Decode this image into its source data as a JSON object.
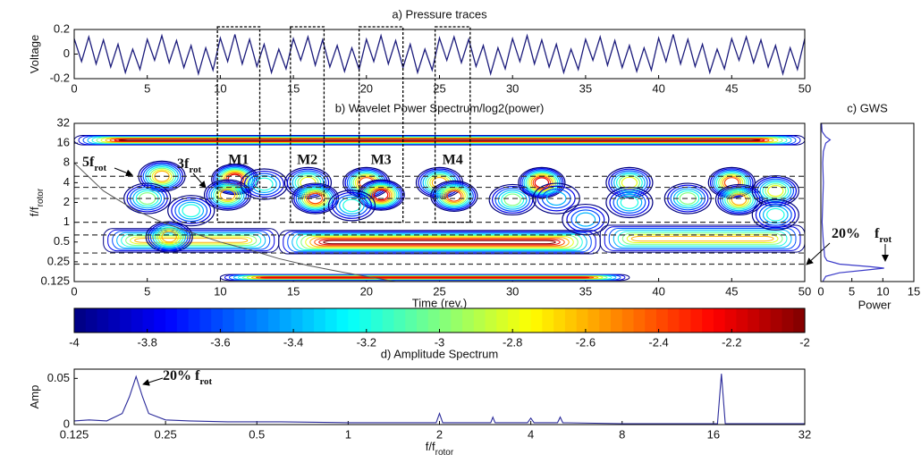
{
  "chart_data": [
    {
      "type": "line",
      "title": "a) Pressure traces",
      "ylabel": {
        "text": "Voltage"
      },
      "xlim": [
        0,
        50
      ],
      "xticks": [
        0,
        5,
        10,
        15,
        20,
        25,
        30,
        35,
        40,
        45,
        50
      ],
      "ylim": [
        -0.2,
        0.2
      ],
      "yticks": [
        -0.2,
        0,
        0.2
      ],
      "color": "#1c1c7c",
      "x": [
        0,
        0.5,
        1,
        1.5,
        2,
        2.5,
        3,
        3.5,
        4,
        4.5,
        5,
        5.5,
        6,
        6.5,
        7,
        7.5,
        8,
        8.5,
        9,
        9.5,
        10,
        10.5,
        11,
        11.5,
        12,
        12.5,
        13,
        13.5,
        14,
        14.5,
        15,
        15.5,
        16,
        16.5,
        17,
        17.5,
        18,
        18.5,
        19,
        19.5,
        20,
        20.5,
        21,
        21.5,
        22,
        22.5,
        23,
        23.5,
        24,
        24.5,
        25,
        25.5,
        26,
        26.5,
        27,
        27.5,
        28,
        28.5,
        29,
        29.5,
        30,
        30.5,
        31,
        31.5,
        32,
        32.5,
        33,
        33.5,
        34,
        34.5,
        35,
        35.5,
        36,
        36.5,
        37,
        37.5,
        38,
        38.5,
        39,
        39.5,
        40,
        40.5,
        41,
        41.5,
        42,
        42.5,
        43,
        43.5,
        44,
        44.5,
        45,
        45.5,
        46,
        46.5,
        47,
        47.5,
        48,
        48.5,
        49,
        49.5,
        50
      ],
      "values": [
        0.125,
        -0.06,
        0.14,
        -0.08,
        0.115,
        -0.105,
        0.08,
        -0.15,
        0.04,
        -0.125,
        0.12,
        -0.05,
        0.15,
        -0.07,
        0.11,
        -0.11,
        0.07,
        -0.16,
        0.05,
        -0.13,
        0.13,
        -0.06,
        0.16,
        -0.08,
        0.12,
        -0.1,
        0.08,
        -0.15,
        0.04,
        -0.12,
        0.125,
        -0.05,
        0.14,
        -0.09,
        0.115,
        -0.105,
        0.07,
        -0.14,
        0.05,
        -0.125,
        0.12,
        -0.06,
        0.15,
        -0.08,
        0.11,
        -0.11,
        0.08,
        -0.15,
        0.04,
        -0.13,
        0.13,
        -0.05,
        0.14,
        -0.07,
        0.12,
        -0.1,
        0.07,
        -0.16,
        0.05,
        -0.12,
        0.125,
        -0.06,
        0.15,
        -0.08,
        0.115,
        -0.105,
        0.08,
        -0.15,
        0.04,
        -0.125,
        0.12,
        -0.05,
        0.14,
        -0.09,
        0.11,
        -0.11,
        0.07,
        -0.14,
        0.05,
        -0.13,
        0.13,
        -0.06,
        0.16,
        -0.08,
        0.12,
        -0.1,
        0.08,
        -0.15,
        0.04,
        -0.12,
        0.125,
        -0.05,
        0.14,
        -0.07,
        0.115,
        -0.105,
        0.07,
        -0.16,
        0.05,
        -0.125,
        0.125
      ]
    },
    {
      "type": "contour",
      "title": "b) Wavelet Power Spectrum/log2(power)",
      "xlabel": "Time (rev.)",
      "ylabel": {
        "text": "f/f",
        "sub": "rotor"
      },
      "yscale": "log2",
      "xlim": [
        0,
        50
      ],
      "xticks": [
        0,
        5,
        10,
        15,
        20,
        25,
        30,
        35,
        40,
        45,
        50
      ],
      "ylim": [
        0.125,
        32
      ],
      "yticks": [
        0.125,
        0.25,
        0.5,
        1,
        2,
        4,
        8,
        16,
        32
      ],
      "clim": [
        -4,
        -2
      ],
      "blobs": {
        "x": [
          6,
          5,
          6.5,
          8,
          11,
          10.5,
          13,
          16,
          16.5,
          20,
          21,
          19,
          25,
          26,
          30,
          32,
          33,
          38,
          38,
          42,
          45,
          45.5,
          48,
          48,
          35
        ],
        "f": [
          5,
          2.3,
          0.6,
          1.5,
          4.5,
          2.6,
          3.8,
          4,
          2.3,
          4,
          2.6,
          1.8,
          4,
          2.5,
          2.2,
          4,
          2.3,
          4,
          2,
          2.3,
          4,
          2.2,
          3,
          1.3,
          1.1
        ],
        "values": [
          -2.6,
          -3,
          -2.6,
          -3.2,
          -2.2,
          -2.6,
          -3.2,
          -2.8,
          -2.4,
          -2.4,
          -2.2,
          -3.2,
          -2.6,
          -2.4,
          -3,
          -2.2,
          -3.4,
          -2.8,
          -3.2,
          -3,
          -2.4,
          -2.6,
          -2.8,
          -3.2,
          -3.4
        ]
      },
      "bands": [
        {
          "x": [
            0,
            50
          ],
          "f": [
            15,
            21
          ],
          "value": -2
        },
        {
          "x": [
            2,
            14
          ],
          "f": [
            0.35,
            0.8
          ],
          "value": -2.6
        },
        {
          "x": [
            14,
            36
          ],
          "f": [
            0.33,
            0.75
          ],
          "value": -2
        },
        {
          "x": [
            36,
            50
          ],
          "f": [
            0.35,
            0.9
          ],
          "value": -2.6
        },
        {
          "x": [
            10,
            38
          ],
          "f": [
            0.13,
            0.16
          ],
          "value": -2.2
        }
      ],
      "ref_lines": [
        5,
        3.4,
        2.3,
        1,
        0.64,
        0.34,
        0.23
      ],
      "coi": {
        "x": [
          0,
          2,
          4,
          6,
          8,
          10,
          12,
          14,
          16,
          18,
          20,
          22
        ],
        "values": [
          8,
          3,
          1.6,
          1,
          0.7,
          0.5,
          0.38,
          0.28,
          0.22,
          0.18,
          0.15,
          0.125
        ]
      },
      "regions": [
        {
          "label": "M1",
          "x": [
            9.8,
            12.7
          ],
          "f_min": 1
        },
        {
          "label": "M2",
          "x": [
            14.8,
            17.1
          ],
          "f_min": 1
        },
        {
          "label": "M3",
          "x": [
            19.5,
            22.5
          ],
          "f_min": 1
        },
        {
          "label": "M4",
          "x": [
            24.7,
            27.1
          ],
          "f_min": 1
        }
      ],
      "annotations": [
        {
          "text": "5f",
          "sub": "rot"
        },
        {
          "text": "3f",
          "sub": "rot"
        },
        {
          "text": "20%"
        }
      ]
    },
    {
      "type": "line",
      "title": "c) GWS",
      "xlabel": "Power",
      "yscale": "log2",
      "orientation": "horizontal",
      "xlim": [
        0,
        15
      ],
      "xticks": [
        0,
        5,
        10,
        15
      ],
      "ylim": [
        0.125,
        32
      ],
      "color": "#3a3ac8",
      "f": [
        0.125,
        0.15,
        0.17,
        0.19,
        0.2,
        0.21,
        0.23,
        0.26,
        0.3,
        0.4,
        0.5,
        0.7,
        1,
        2,
        4,
        8,
        12,
        16,
        18,
        20,
        24,
        32
      ],
      "values": [
        0.3,
        0.8,
        3,
        8,
        10.2,
        8,
        3,
        1,
        0.6,
        0.5,
        0.4,
        0.3,
        0.2,
        0.3,
        0.4,
        0.3,
        0.4,
        0.8,
        1.5,
        0.8,
        0.2,
        0.1
      ],
      "annotations": [
        {
          "text": "f",
          "sub": "rot"
        }
      ]
    },
    {
      "type": "colorbar",
      "clim": [
        -4,
        -2
      ],
      "colormap": "jet",
      "ticks": [
        -4,
        -3.8,
        -3.6,
        -3.4,
        -3.2,
        -3,
        -2.8,
        -2.6,
        -2.4,
        -2.2,
        -2
      ]
    },
    {
      "type": "line",
      "title": "d) Amplitude Spectrum",
      "xlabel": {
        "text": "f/f",
        "sub": "rotor"
      },
      "ylabel": {
        "text": "Amp"
      },
      "xscale": "log2",
      "xlim": [
        0.125,
        32
      ],
      "xticks": [
        0.125,
        0.25,
        0.5,
        1,
        2,
        4,
        8,
        16,
        32
      ],
      "ylim": [
        0,
        0.06
      ],
      "yticks": [
        0,
        0.05
      ],
      "color": "#2a2a9a",
      "x": [
        0.125,
        0.14,
        0.16,
        0.18,
        0.19,
        0.2,
        0.21,
        0.22,
        0.25,
        0.3,
        0.4,
        0.6,
        1,
        1.5,
        1.95,
        2,
        2.05,
        2.5,
        2.95,
        3,
        3.05,
        3.9,
        4,
        4.1,
        4.9,
        5,
        5.1,
        8,
        12,
        16.5,
        17,
        17.5,
        24,
        32
      ],
      "values": [
        0.004,
        0.005,
        0.004,
        0.012,
        0.03,
        0.052,
        0.03,
        0.012,
        0.005,
        0.004,
        0.003,
        0.003,
        0.002,
        0.002,
        0.002,
        0.012,
        0.002,
        0.002,
        0.002,
        0.008,
        0.002,
        0.002,
        0.007,
        0.002,
        0.002,
        0.008,
        0.002,
        0.001,
        0.001,
        0.001,
        0.055,
        0.001,
        0.001,
        0.001
      ],
      "annotations": [
        {
          "text": "20%  f",
          "sub": "rot"
        }
      ]
    }
  ]
}
